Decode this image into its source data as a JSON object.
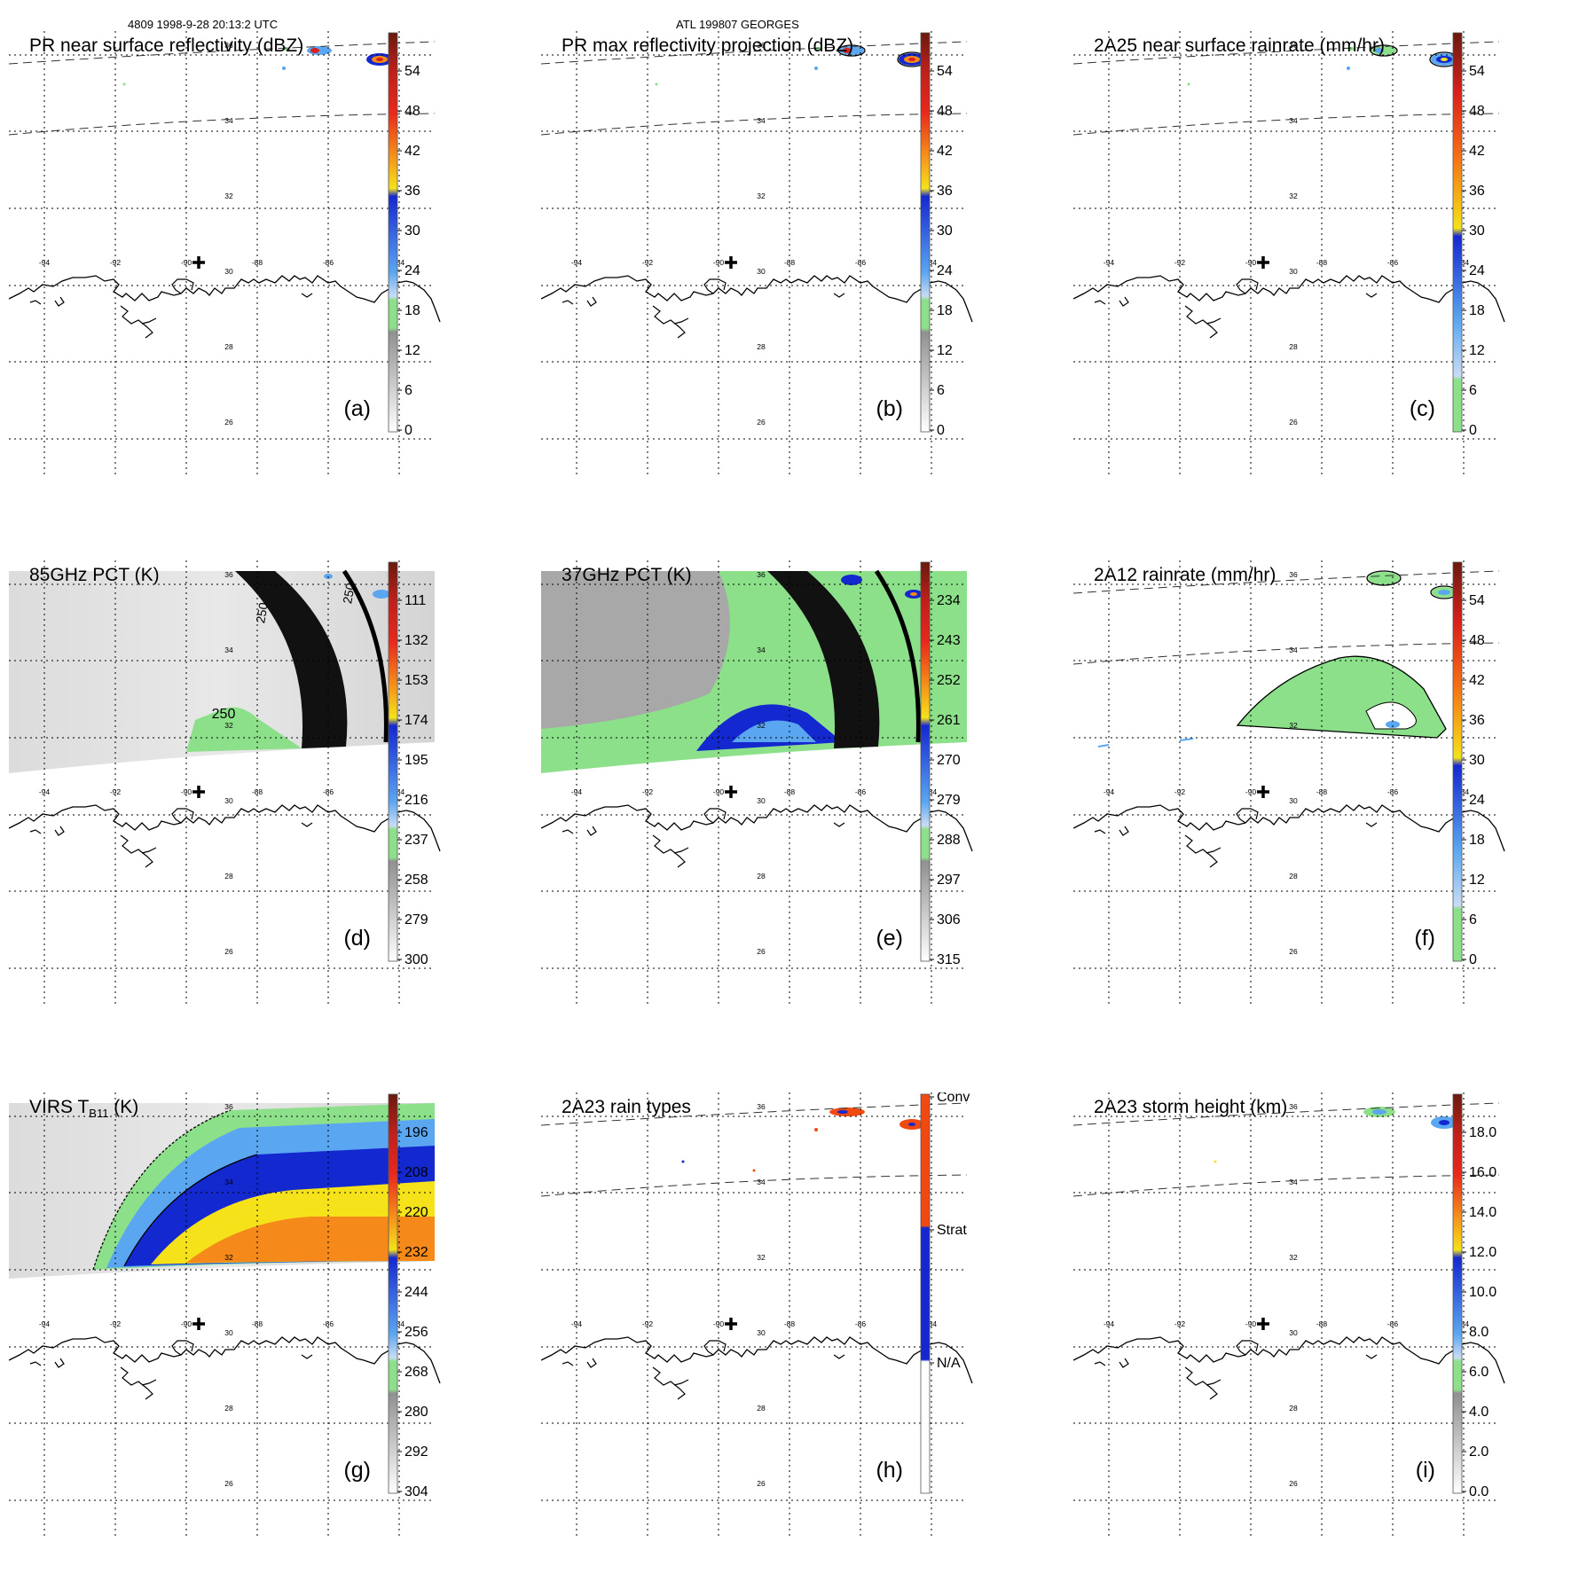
{
  "header": {
    "left": "4809 1998-9-28 20:13:2 UTC",
    "center": "ATL 199807 GEORGES"
  },
  "lon_ticks": [
    "-94",
    "-92",
    "-90",
    "-88",
    "-86",
    "-84"
  ],
  "lat_ticks": [
    "36",
    "34",
    "32",
    "30",
    "28",
    "26"
  ],
  "panels": [
    {
      "id": "a",
      "title": "PR near surface reflectivity (dBZ)",
      "label": "(a)",
      "colorbar": [
        "54",
        "48",
        "42",
        "36",
        "30",
        "24",
        "18",
        "12",
        "6",
        "0"
      ]
    },
    {
      "id": "b",
      "title": "PR max reflectivity projection (dBZ)",
      "label": "(b)",
      "colorbar": [
        "54",
        "48",
        "42",
        "36",
        "30",
        "24",
        "18",
        "12",
        "6",
        "0"
      ]
    },
    {
      "id": "c",
      "title": "2A25 near surface rainrate (mm/hr)",
      "label": "(c)",
      "colorbar": [
        "54",
        "48",
        "42",
        "36",
        "30",
        "24",
        "18",
        "12",
        "6",
        "0"
      ]
    },
    {
      "id": "d",
      "title": "85GHz PCT (K)",
      "label": "(d)",
      "colorbar": [
        "111",
        "132",
        "153",
        "174",
        "195",
        "216",
        "237",
        "258",
        "279",
        "300"
      ],
      "contour_labels": [
        "250",
        "250",
        "250"
      ]
    },
    {
      "id": "e",
      "title": "37GHz PCT (K)",
      "label": "(e)",
      "colorbar": [
        "234",
        "243",
        "252",
        "261",
        "270",
        "279",
        "288",
        "297",
        "306",
        "315"
      ]
    },
    {
      "id": "f",
      "title": "2A12 rainrate (mm/hr)",
      "label": "(f)",
      "colorbar": [
        "54",
        "48",
        "42",
        "36",
        "30",
        "24",
        "18",
        "12",
        "6",
        "0"
      ]
    },
    {
      "id": "g",
      "title_main": "VIRS T",
      "title_sub": "B11",
      "title_unit": " (K)",
      "label": "(g)",
      "colorbar": [
        "196",
        "208",
        "220",
        "232",
        "244",
        "256",
        "268",
        "280",
        "292",
        "304"
      ]
    },
    {
      "id": "h",
      "title": "2A23 rain types",
      "label": "(h)",
      "colorbar": [
        "Conv",
        "Strat",
        "N/A"
      ]
    },
    {
      "id": "i",
      "title": "2A23 storm height (km)",
      "label": "(i)",
      "colorbar": [
        "18.0",
        "16.0",
        "14.0",
        "12.0",
        "10.0",
        "8.0",
        "6.0",
        "4.0",
        "2.0",
        "0.0"
      ]
    }
  ],
  "colors": {
    "dark_red": "#7a1a0c",
    "red": "#d8201c",
    "orange_red": "#f04a12",
    "orange": "#f58a14",
    "yellow": "#f5e21a",
    "blue": "#1428d0",
    "light_blue": "#5aa6f0",
    "pale_blue": "#b6d4f6",
    "green": "#8ce08a",
    "grey": "#a8a8a8",
    "light_grey": "#e2e2e2"
  }
}
